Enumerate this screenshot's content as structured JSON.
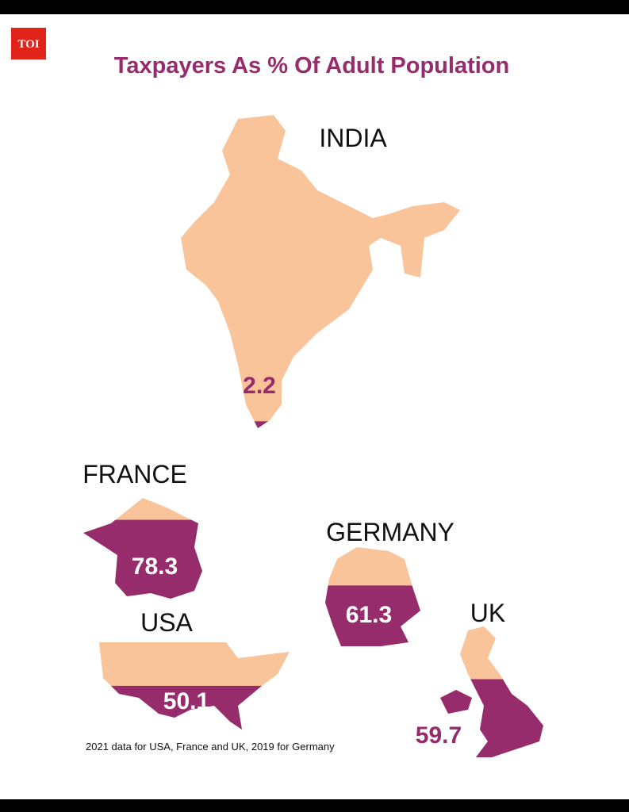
{
  "logo": "TOI",
  "chart_data": {
    "type": "map-fill",
    "title": "Taxpayers As % Of Adult Population",
    "categories": [
      "INDIA",
      "FRANCE",
      "GERMANY",
      "USA",
      "UK"
    ],
    "values": [
      2.2,
      78.3,
      61.3,
      50.1,
      59.7
    ],
    "ylim": [
      0,
      100
    ],
    "base_color": "#f9c49a",
    "color": "#972c6c",
    "note": "2021 data for USA, France and UK, 2019 for Germany"
  }
}
